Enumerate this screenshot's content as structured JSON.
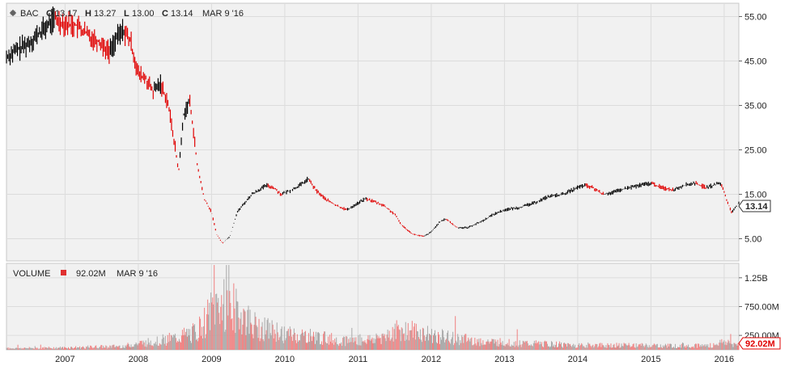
{
  "header": {
    "symbol": "BAC",
    "o_label": "O",
    "open": "13.17",
    "h_label": "H",
    "high": "13.27",
    "l_label": "L",
    "low": "13.00",
    "c_label": "C",
    "close": "13.14",
    "date": "MAR 9 '16",
    "crosshair_icon": "crosshair-icon"
  },
  "volume_header": {
    "label": "VOLUME",
    "value": "92.02M",
    "date": "MAR 9 '16",
    "legend_color": "#e03030"
  },
  "price_badge": "13.14",
  "volume_badge": "92.02M",
  "colors": {
    "up": "#000000",
    "down": "#e00000",
    "badge_volume": "#e00000",
    "panel_bg": "#f0f0f0",
    "grid": "#dcdcdc"
  },
  "chart_data": [
    {
      "type": "line",
      "title": "",
      "ticker": "BAC",
      "x_ticks": [
        "2007",
        "2008",
        "2009",
        "2010",
        "2011",
        "2012",
        "2013",
        "2014",
        "2015",
        "2016"
      ],
      "y_ticks": [
        "55.00",
        "45.00",
        "35.00",
        "25.00",
        "15.00",
        "5.00"
      ],
      "ylim": [
        0,
        58
      ],
      "xlim": [
        2006.2,
        2016.2
      ],
      "series": [
        {
          "values": [
            [
              2006.2,
              46
            ],
            [
              2006.35,
              47.5
            ],
            [
              2006.5,
              49
            ],
            [
              2006.7,
              52
            ],
            [
              2006.85,
              54.5
            ],
            [
              2007.0,
              53.5
            ],
            [
              2007.15,
              53
            ],
            [
              2007.3,
              51
            ],
            [
              2007.5,
              49
            ],
            [
              2007.6,
              47
            ],
            [
              2007.7,
              50
            ],
            [
              2007.8,
              52
            ],
            [
              2007.9,
              49
            ],
            [
              2008.0,
              42
            ],
            [
              2008.1,
              41
            ],
            [
              2008.2,
              38
            ],
            [
              2008.3,
              40
            ],
            [
              2008.4,
              36
            ],
            [
              2008.5,
              26
            ],
            [
              2008.55,
              20
            ],
            [
              2008.62,
              33
            ],
            [
              2008.7,
              36
            ],
            [
              2008.75,
              30
            ],
            [
              2008.8,
              22
            ],
            [
              2008.85,
              18
            ],
            [
              2008.9,
              14
            ],
            [
              2009.0,
              11
            ],
            [
              2009.07,
              6
            ],
            [
              2009.15,
              4
            ],
            [
              2009.25,
              5.5
            ],
            [
              2009.35,
              11
            ],
            [
              2009.45,
              13
            ],
            [
              2009.55,
              15
            ],
            [
              2009.65,
              16
            ],
            [
              2009.75,
              17
            ],
            [
              2009.85,
              16.5
            ],
            [
              2009.95,
              15
            ],
            [
              2010.1,
              16
            ],
            [
              2010.25,
              17.5
            ],
            [
              2010.32,
              18.5
            ],
            [
              2010.42,
              16
            ],
            [
              2010.55,
              14
            ],
            [
              2010.7,
              12.5
            ],
            [
              2010.85,
              11.5
            ],
            [
              2011.0,
              13
            ],
            [
              2011.1,
              14
            ],
            [
              2011.2,
              13.5
            ],
            [
              2011.35,
              12.5
            ],
            [
              2011.5,
              10.5
            ],
            [
              2011.6,
              8
            ],
            [
              2011.75,
              6
            ],
            [
              2011.9,
              5.5
            ],
            [
              2012.0,
              6.5
            ],
            [
              2012.1,
              8.5
            ],
            [
              2012.2,
              9.5
            ],
            [
              2012.35,
              7.5
            ],
            [
              2012.5,
              7.5
            ],
            [
              2012.7,
              9
            ],
            [
              2012.85,
              10.5
            ],
            [
              2013.0,
              11.5
            ],
            [
              2013.2,
              12
            ],
            [
              2013.4,
              13
            ],
            [
              2013.6,
              14.5
            ],
            [
              2013.8,
              15
            ],
            [
              2014.0,
              16.5
            ],
            [
              2014.1,
              17
            ],
            [
              2014.2,
              16.5
            ],
            [
              2014.35,
              15
            ],
            [
              2014.5,
              15.5
            ],
            [
              2014.7,
              16.5
            ],
            [
              2014.85,
              17
            ],
            [
              2015.0,
              17.5
            ],
            [
              2015.15,
              16.5
            ],
            [
              2015.3,
              16
            ],
            [
              2015.45,
              17
            ],
            [
              2015.6,
              17.5
            ],
            [
              2015.75,
              16.5
            ],
            [
              2015.85,
              17
            ],
            [
              2015.95,
              17.5
            ],
            [
              2016.0,
              15.5
            ],
            [
              2016.05,
              13
            ],
            [
              2016.1,
              11
            ],
            [
              2016.15,
              12
            ],
            [
              2016.2,
              13.14
            ]
          ]
        }
      ]
    },
    {
      "type": "bar",
      "title": "",
      "y_ticks": [
        "1.25B",
        "750.00M",
        "250.00M"
      ],
      "ylim": [
        0,
        1.5
      ],
      "unit": "B shares",
      "profile": [
        [
          2006.2,
          0.03
        ],
        [
          2007.0,
          0.04
        ],
        [
          2007.8,
          0.07
        ],
        [
          2008.0,
          0.12
        ],
        [
          2008.5,
          0.22
        ],
        [
          2008.8,
          0.35
        ],
        [
          2009.1,
          0.9
        ],
        [
          2009.3,
          0.8
        ],
        [
          2009.6,
          0.45
        ],
        [
          2010.0,
          0.3
        ],
        [
          2010.4,
          0.25
        ],
        [
          2010.8,
          0.18
        ],
        [
          2011.2,
          0.2
        ],
        [
          2011.6,
          0.4
        ],
        [
          2011.9,
          0.3
        ],
        [
          2012.3,
          0.22
        ],
        [
          2012.8,
          0.15
        ],
        [
          2013.3,
          0.12
        ],
        [
          2014.0,
          0.09
        ],
        [
          2015.0,
          0.08
        ],
        [
          2015.8,
          0.08
        ],
        [
          2016.0,
          0.15
        ],
        [
          2016.2,
          0.09
        ]
      ]
    }
  ]
}
